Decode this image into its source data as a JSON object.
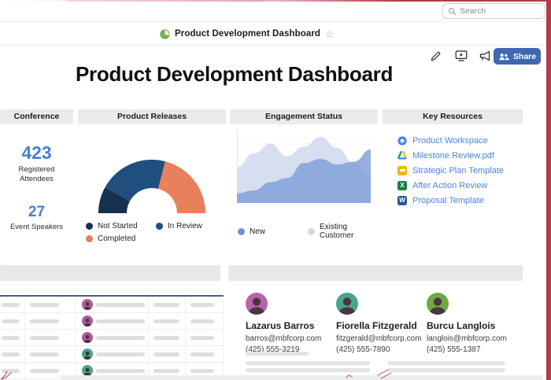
{
  "topbar": {
    "search_placeholder": "Search"
  },
  "doc_header": {
    "title": "Product Development Dashboard",
    "share_label": "Share"
  },
  "page_title": "Product Development Dashboard",
  "cards": {
    "conference": {
      "header": "Conference",
      "stats": [
        {
          "value": "423",
          "label": "Registered Attendees"
        },
        {
          "value": "27",
          "label": "Event Speakers"
        }
      ]
    },
    "product_releases": {
      "header": "Product Releases"
    },
    "engagement": {
      "header": "Engagement Status"
    },
    "resources": {
      "header": "Key Resources",
      "icon_letters": {
        "excel": "X",
        "word": "W"
      },
      "links": [
        {
          "label": "Product Workspace",
          "icon": "workspace-icon"
        },
        {
          "label": "Milestone Review.pdf",
          "icon": "drive-icon"
        },
        {
          "label": "Strategic Plan Template",
          "icon": "slides-icon"
        },
        {
          "label": "After Action Review",
          "icon": "excel-icon"
        },
        {
          "label": "Proposal Template",
          "icon": "word-icon"
        }
      ]
    }
  },
  "chart_data": [
    {
      "type": "pie",
      "style": "half-donut",
      "title": "Product Releases",
      "categories": [
        "Not Started",
        "In Review",
        "Completed"
      ],
      "values": [
        16,
        42,
        42
      ],
      "colors": [
        "#16304f",
        "#1f4e7f",
        "#e8805b"
      ],
      "legend_position": "bottom"
    },
    {
      "type": "area",
      "title": "Engagement Status",
      "x": [
        0,
        1,
        2,
        3,
        4,
        5,
        6,
        7,
        8
      ],
      "series": [
        {
          "name": "Existing Customer",
          "values": [
            50,
            70,
            84,
            66,
            80,
            94,
            78,
            55,
            39
          ],
          "color": "#d4dcee",
          "legend_color": "#d9d9d9",
          "fill_opacity": 0.95
        },
        {
          "name": "New",
          "values": [
            12,
            16,
            28,
            34,
            56,
            62,
            54,
            58,
            76
          ],
          "color": "#7d9cd8",
          "legend_color": "#6b93d4",
          "fill_opacity": 0.8
        }
      ],
      "ylim": [
        0,
        100
      ],
      "grid": true,
      "legend_position": "bottom"
    }
  ],
  "contacts": [
    {
      "name": "Lazarus Barros",
      "email": "barros@mbfcorp.com",
      "phone": "(425) 555-3219",
      "avatar_color": "#b964a8"
    },
    {
      "name": "Fiorella Fitzgerald",
      "email": "fitzgerald@mbfcorp.com",
      "phone": "(425) 555-7890",
      "avatar_color": "#4aa38f"
    },
    {
      "name": "Burcu Langlois",
      "email": "langlois@mbfcorp.com",
      "phone": "(425) 555-1387",
      "avatar_color": "#70a844"
    }
  ],
  "colors": {
    "accent_blue": "#4a80cf",
    "link_blue": "#4a86d8",
    "share_button": "#3e68b0",
    "annotation_red": "#b43a4e",
    "table_border_blue": "#44618e"
  }
}
